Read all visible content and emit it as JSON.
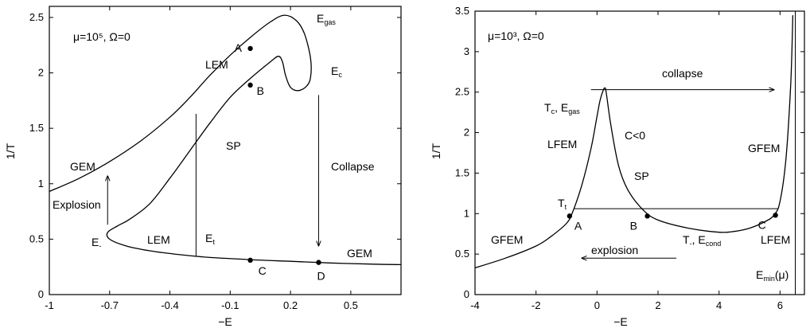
{
  "chart_data": [
    {
      "type": "line",
      "id": "left",
      "param_label": "μ=10⁵, Ω=0",
      "xlabel": "−E",
      "ylabel": "1/T",
      "xlim": [
        -1.0,
        0.75
      ],
      "ylim": [
        0,
        2.6
      ],
      "xticks": [
        "-1",
        "-0.7",
        "-0.4",
        "-0.1",
        "0.2",
        "0.5"
      ],
      "xtick_values": [
        -1.0,
        -0.7,
        -0.4,
        -0.1,
        0.2,
        0.5
      ],
      "yticks": [
        "0",
        "0.5",
        "1",
        "1.5",
        "2",
        "2.5"
      ],
      "ytick_values": [
        0,
        0.5,
        1,
        1.5,
        2,
        2.5
      ],
      "series": [
        {
          "points": [
            [
              -1.0,
              0.93
            ],
            [
              -0.85,
              1.05
            ],
            [
              -0.7,
              1.2
            ],
            [
              -0.55,
              1.38
            ],
            [
              -0.4,
              1.6
            ],
            [
              -0.3,
              1.78
            ],
            [
              -0.2,
              1.98
            ],
            [
              -0.1,
              2.16
            ],
            [
              0.0,
              2.32
            ],
            [
              0.1,
              2.46
            ],
            [
              0.17,
              2.52
            ],
            [
              0.23,
              2.47
            ],
            [
              0.27,
              2.35
            ],
            [
              0.3,
              2.13
            ],
            [
              0.3,
              1.96
            ],
            [
              0.28,
              1.88
            ],
            [
              0.24,
              1.84
            ],
            [
              0.2,
              1.87
            ],
            [
              0.175,
              1.98
            ],
            [
              0.16,
              2.1
            ],
            [
              0.14,
              2.15
            ],
            [
              0.1,
              2.1
            ],
            [
              0.0,
              1.95
            ],
            [
              -0.1,
              1.78
            ],
            [
              -0.2,
              1.55
            ],
            [
              -0.3,
              1.3
            ],
            [
              -0.4,
              1.05
            ],
            [
              -0.5,
              0.82
            ],
            [
              -0.6,
              0.68
            ],
            [
              -0.66,
              0.62
            ],
            [
              -0.71,
              0.56
            ],
            [
              -0.7,
              0.5
            ],
            [
              -0.62,
              0.44
            ],
            [
              -0.5,
              0.395
            ],
            [
              -0.35,
              0.36
            ],
            [
              -0.2,
              0.335
            ],
            [
              0.0,
              0.315
            ],
            [
              0.2,
              0.3
            ],
            [
              0.4,
              0.285
            ],
            [
              0.6,
              0.275
            ],
            [
              0.75,
              0.27
            ]
          ]
        }
      ],
      "markers": [
        {
          "label": "A",
          "x": 0.0,
          "y": 2.22
        },
        {
          "label": "B",
          "x": 0.0,
          "y": 1.89
        },
        {
          "label": "C",
          "x": 0.0,
          "y": 0.31
        },
        {
          "label": "D",
          "x": 0.34,
          "y": 0.29
        }
      ],
      "vline": {
        "x": -0.27,
        "y0": 0.35,
        "y1": 1.63
      },
      "arrows": [
        {
          "x": 0.34,
          "y_from": 1.8,
          "y_to": 0.44,
          "label": "Collapse"
        },
        {
          "x": -0.71,
          "y_from": 0.63,
          "y_to": 1.07,
          "label": "Explosion"
        }
      ],
      "annotations": {
        "lem1": "LEM",
        "egas_main": "E",
        "egas_sub": "gas",
        "ec_main": "E",
        "ec_sub": "c",
        "sp": "SP",
        "gem_upper": "GEM",
        "collapse": "Collapse",
        "explosion": "Explosion",
        "eminus_main": "E",
        "eminus_sub": "-",
        "lem2": "LEM",
        "et_main": "E",
        "et_sub": "t",
        "gem_lower": "GEM"
      }
    },
    {
      "type": "line",
      "id": "right",
      "param_label": "μ=10³, Ω=0",
      "xlabel": "−E",
      "ylabel": "1/T",
      "xlim": [
        -4,
        6.8
      ],
      "ylim": [
        0,
        3.5
      ],
      "xticks": [
        "-4",
        "-2",
        "0",
        "2",
        "4",
        "6"
      ],
      "xtick_values": [
        -4,
        -2,
        0,
        2,
        4,
        6
      ],
      "yticks": [
        "0",
        "0.5",
        "1",
        "1.5",
        "2",
        "2.5",
        "3",
        "3.5"
      ],
      "ytick_values": [
        0,
        0.5,
        1,
        1.5,
        2,
        2.5,
        3,
        3.5
      ],
      "series": [
        {
          "points": [
            [
              -4,
              0.33
            ],
            [
              -3,
              0.45
            ],
            [
              -2,
              0.6
            ],
            [
              -1.5,
              0.72
            ],
            [
              -1,
              0.88
            ],
            [
              -0.8,
              1.02
            ],
            [
              -0.5,
              1.35
            ],
            [
              -0.2,
              1.8
            ],
            [
              0,
              2.2
            ],
            [
              0.1,
              2.4
            ],
            [
              0.2,
              2.52
            ],
            [
              0.25,
              2.55
            ],
            [
              0.3,
              2.5
            ],
            [
              0.45,
              2.1
            ],
            [
              0.7,
              1.6
            ],
            [
              1,
              1.3
            ],
            [
              1.5,
              1.05
            ],
            [
              2,
              0.92
            ],
            [
              3,
              0.82
            ],
            [
              4,
              0.77
            ],
            [
              4.5,
              0.78
            ],
            [
              5,
              0.82
            ],
            [
              5.5,
              0.9
            ],
            [
              5.8,
              0.98
            ],
            [
              6,
              1.15
            ],
            [
              6.2,
              1.7
            ],
            [
              6.35,
              2.6
            ],
            [
              6.42,
              3.45
            ]
          ]
        }
      ],
      "markers": [
        {
          "label": "A",
          "x": -0.9,
          "y": 0.97
        },
        {
          "label": "B",
          "x": 1.65,
          "y": 0.97
        },
        {
          "label": "C",
          "x": 5.85,
          "y": 0.98
        }
      ],
      "hline": {
        "y": 1.06,
        "x0": -0.75,
        "x1": 5.95
      },
      "vline": {
        "x": 6.5,
        "y0": 0,
        "y1": 3.5
      },
      "arrows": [
        {
          "y": 2.53,
          "x_from": -0.2,
          "x_to": 5.8,
          "label": "collapse"
        },
        {
          "y": 0.45,
          "x_from": 2.6,
          "x_to": -0.5,
          "label": "explosion"
        }
      ],
      "annotations": {
        "tc_main": "T",
        "tc_sub": "c",
        "egas_main": ", E",
        "egas_sub": "gas",
        "collapse": "collapse",
        "lfem_left": "LFEM",
        "c_lt_0": "C<0",
        "gfem_right": "GFEM",
        "sp": "SP",
        "tt_main": "T",
        "tt_sub": "t",
        "gfem_left": "GFEM",
        "explosion": "explosion",
        "tminus_main": "T",
        "tminus_sub": "-",
        "econd_main": ", E",
        "econd_sub": "cond",
        "lfem_right": "LFEM",
        "emin_main": "E",
        "emin_sub": "min",
        "emin_tail": "(μ)"
      }
    }
  ]
}
